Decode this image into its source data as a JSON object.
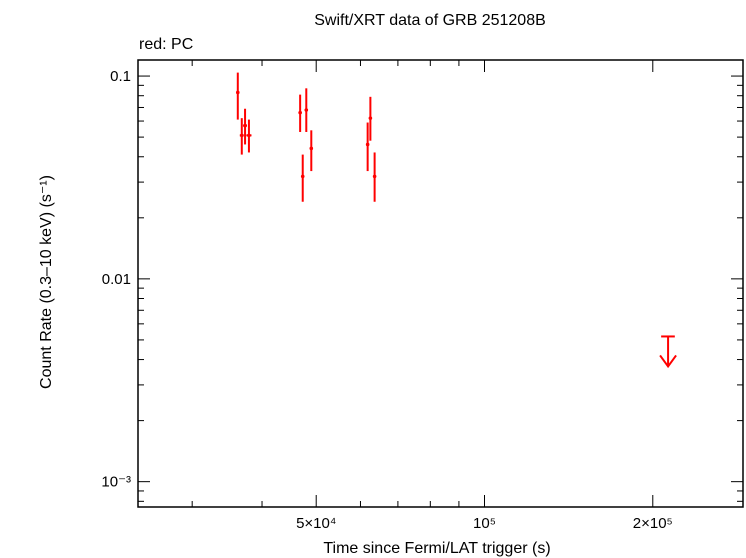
{
  "chart_data": {
    "type": "scatter",
    "title": "Swift/XRT data of GRB 251208B",
    "subtitle": "red: PC",
    "xlabel": "Time since Fermi/LAT trigger (s)",
    "ylabel": "Count Rate (0.3–10 keV) (s⁻¹)",
    "xscale": "log",
    "yscale": "log",
    "xlim": [
      24000,
      290000
    ],
    "ylim": [
      0.00075,
      0.12
    ],
    "x_ticks": [
      {
        "value": 50000,
        "label": "5×10⁴"
      },
      {
        "value": 100000,
        "label": "10⁵"
      },
      {
        "value": 200000,
        "label": "2×10⁵"
      }
    ],
    "y_ticks": [
      {
        "value": 0.1,
        "label": "0.1"
      },
      {
        "value": 0.01,
        "label": "0.01"
      },
      {
        "value": 0.001,
        "label": "10⁻³"
      }
    ],
    "grid": false,
    "series": [
      {
        "color": "#ff0000",
        "points": [
          {
            "x": 36200,
            "xerr": [
              200,
              200
            ],
            "y": 0.083,
            "ylo": 0.061,
            "yhi": 0.104
          },
          {
            "x": 36800,
            "xerr": [
              300,
              300
            ],
            "y": 0.051,
            "ylo": 0.041,
            "yhi": 0.062
          },
          {
            "x": 37300,
            "xerr": [
              300,
              300
            ],
            "y": 0.057,
            "ylo": 0.046,
            "yhi": 0.069
          },
          {
            "x": 37900,
            "xerr": [
              400,
              400
            ],
            "y": 0.051,
            "ylo": 0.042,
            "yhi": 0.061
          },
          {
            "x": 46800,
            "xerr": [
              300,
              300
            ],
            "y": 0.066,
            "ylo": 0.053,
            "yhi": 0.081
          },
          {
            "x": 47300,
            "xerr": [
              200,
              200
            ],
            "y": 0.032,
            "ylo": 0.024,
            "yhi": 0.041
          },
          {
            "x": 48000,
            "xerr": [
              300,
              300
            ],
            "y": 0.068,
            "ylo": 0.053,
            "yhi": 0.087
          },
          {
            "x": 49000,
            "xerr": [
              300,
              300
            ],
            "y": 0.044,
            "ylo": 0.034,
            "yhi": 0.054
          },
          {
            "x": 61800,
            "xerr": [
              300,
              300
            ],
            "y": 0.046,
            "ylo": 0.034,
            "yhi": 0.059
          },
          {
            "x": 62500,
            "xerr": [
              300,
              300
            ],
            "y": 0.062,
            "ylo": 0.048,
            "yhi": 0.079
          },
          {
            "x": 63600,
            "xerr": [
              300,
              300
            ],
            "y": 0.032,
            "ylo": 0.024,
            "yhi": 0.042
          }
        ],
        "upper_limits": [
          {
            "x": 213000,
            "xerr": [
              6000,
              6000
            ],
            "y": 0.0052,
            "arrow_to": 0.0037
          }
        ]
      }
    ]
  }
}
